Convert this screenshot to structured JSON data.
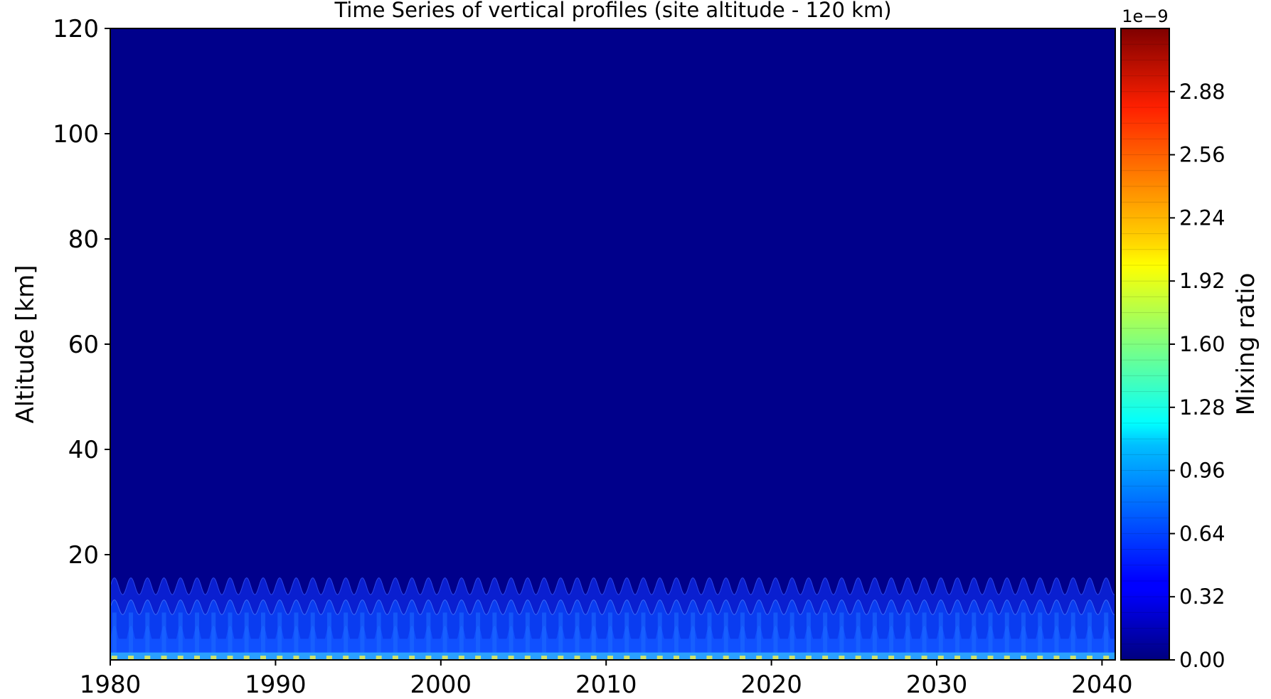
{
  "chart_data": {
    "type": "heatmap",
    "title": "Time Series of vertical profiles (site altitude - 120 km)",
    "xlabel": "",
    "ylabel": "Altitude [km]",
    "x_ticks": [
      "1980",
      "1990",
      "2000",
      "2010",
      "2020",
      "2030",
      "2040"
    ],
    "y_ticks": [
      "20",
      "40",
      "60",
      "80",
      "100",
      "120"
    ],
    "xlim": [
      1980,
      2040.8
    ],
    "ylim": [
      0,
      120
    ],
    "grid": false,
    "colorbar": {
      "label": "Mixing ratio",
      "offset_text": "1e−9",
      "tick_labels": [
        "0.00",
        "0.32",
        "0.64",
        "0.96",
        "1.28",
        "1.60",
        "1.92",
        "2.24",
        "2.56",
        "2.88"
      ],
      "range": [
        0.0,
        3.2
      ],
      "levels": 40,
      "colormap": "jet"
    },
    "field": {
      "description_value_units": "1e-9",
      "background_value": 0.0,
      "seasonal_cycle_period_years": 1,
      "enhanced_layer_top_km": 16,
      "peak_values": [
        {
          "altitude_km": 0.5,
          "value": 2.0
        },
        {
          "altitude_km": 3,
          "value": 0.5
        },
        {
          "altitude_km": 10,
          "value": 0.35
        },
        {
          "altitude_km": 15,
          "value": 0.1
        }
      ]
    }
  },
  "colors": {
    "background_field": "#00008b",
    "low_layer": "#0a3cf0",
    "peak_surface": "#f0f050"
  }
}
